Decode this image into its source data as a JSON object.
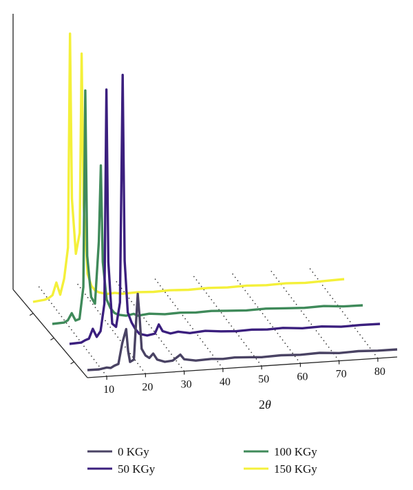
{
  "chart_data": {
    "type": "line",
    "style": "3d-waterfall",
    "xlabel_main": "2",
    "xlabel_theta": "θ",
    "x_ticks": [
      "10",
      "20",
      "30",
      "40",
      "50",
      "60",
      "70",
      "80"
    ],
    "xlim": [
      5,
      85
    ],
    "legend_placement": "bottom",
    "series": [
      {
        "name": "0 KGy",
        "color": "#4a4364",
        "points": [
          [
            5,
            4
          ],
          [
            8,
            4
          ],
          [
            10,
            6
          ],
          [
            11,
            5
          ],
          [
            12,
            8
          ],
          [
            13,
            10
          ],
          [
            14,
            40
          ],
          [
            15,
            60
          ],
          [
            15.5,
            28
          ],
          [
            16,
            12
          ],
          [
            17,
            15
          ],
          [
            18,
            110
          ],
          [
            18.5,
            75
          ],
          [
            19,
            30
          ],
          [
            20,
            20
          ],
          [
            21,
            16
          ],
          [
            22,
            22
          ],
          [
            23,
            13
          ],
          [
            25,
            9
          ],
          [
            27,
            10
          ],
          [
            29,
            18
          ],
          [
            30,
            11
          ],
          [
            33,
            8
          ],
          [
            37,
            9
          ],
          [
            40,
            8
          ],
          [
            43,
            9
          ],
          [
            47,
            8
          ],
          [
            50,
            7
          ],
          [
            55,
            8
          ],
          [
            60,
            7
          ],
          [
            65,
            8
          ],
          [
            70,
            6
          ],
          [
            75,
            7
          ],
          [
            80,
            6
          ],
          [
            85,
            6
          ]
        ]
      },
      {
        "name": "50 KGy",
        "color": "#3b1f7e",
        "points": [
          [
            5,
            4
          ],
          [
            8,
            5
          ],
          [
            9,
            8
          ],
          [
            10,
            10
          ],
          [
            11,
            24
          ],
          [
            12,
            12
          ],
          [
            13,
            20
          ],
          [
            14,
            60
          ],
          [
            14.5,
            370
          ],
          [
            15,
            120
          ],
          [
            16,
            30
          ],
          [
            17,
            25
          ],
          [
            18,
            60
          ],
          [
            18.7,
            390
          ],
          [
            19.2,
            120
          ],
          [
            20,
            45
          ],
          [
            21,
            30
          ],
          [
            22,
            20
          ],
          [
            23,
            13
          ],
          [
            25,
            10
          ],
          [
            27,
            12
          ],
          [
            28,
            25
          ],
          [
            29,
            15
          ],
          [
            31,
            11
          ],
          [
            33,
            13
          ],
          [
            36,
            10
          ],
          [
            40,
            12
          ],
          [
            44,
            10
          ],
          [
            48,
            9
          ],
          [
            52,
            10
          ],
          [
            56,
            9
          ],
          [
            60,
            10
          ],
          [
            65,
            8
          ],
          [
            70,
            9
          ],
          [
            75,
            7
          ],
          [
            80,
            8
          ],
          [
            85,
            8
          ]
        ]
      },
      {
        "name": "100 KGy",
        "color": "#3f8a5a",
        "points": [
          [
            5,
            4
          ],
          [
            8,
            5
          ],
          [
            9,
            8
          ],
          [
            10,
            18
          ],
          [
            11,
            7
          ],
          [
            12,
            9
          ],
          [
            13,
            55
          ],
          [
            13.5,
            340
          ],
          [
            14,
            100
          ],
          [
            15,
            40
          ],
          [
            16,
            30
          ],
          [
            17,
            120
          ],
          [
            17.5,
            230
          ],
          [
            18,
            90
          ],
          [
            19,
            35
          ],
          [
            20,
            22
          ],
          [
            21,
            15
          ],
          [
            22,
            12
          ],
          [
            24,
            10
          ],
          [
            26,
            12
          ],
          [
            27,
            9
          ],
          [
            30,
            11
          ],
          [
            34,
            9
          ],
          [
            38,
            10
          ],
          [
            42,
            9
          ],
          [
            46,
            10
          ],
          [
            50,
            9
          ],
          [
            55,
            8
          ],
          [
            60,
            9
          ],
          [
            65,
            8
          ],
          [
            70,
            7
          ],
          [
            75,
            8
          ],
          [
            80,
            6
          ],
          [
            85,
            6
          ]
        ]
      },
      {
        "name": "150 KGy",
        "color": "#f4f03a",
        "points": [
          [
            5,
            4
          ],
          [
            8,
            6
          ],
          [
            9,
            8
          ],
          [
            10,
            12
          ],
          [
            11,
            30
          ],
          [
            12,
            12
          ],
          [
            13,
            35
          ],
          [
            14,
            80
          ],
          [
            14.5,
            390
          ],
          [
            15,
            150
          ],
          [
            16,
            70
          ],
          [
            17,
            100
          ],
          [
            17.5,
            360
          ],
          [
            18,
            140
          ],
          [
            19,
            40
          ],
          [
            20,
            22
          ],
          [
            21,
            15
          ],
          [
            22,
            12
          ],
          [
            24,
            9
          ],
          [
            26,
            10
          ],
          [
            28,
            8
          ],
          [
            32,
            9
          ],
          [
            36,
            8
          ],
          [
            40,
            9
          ],
          [
            45,
            8
          ],
          [
            50,
            9
          ],
          [
            55,
            8
          ],
          [
            60,
            9
          ],
          [
            65,
            8
          ],
          [
            70,
            9
          ],
          [
            75,
            8
          ],
          [
            80,
            9
          ],
          [
            85,
            10
          ]
        ]
      }
    ]
  }
}
